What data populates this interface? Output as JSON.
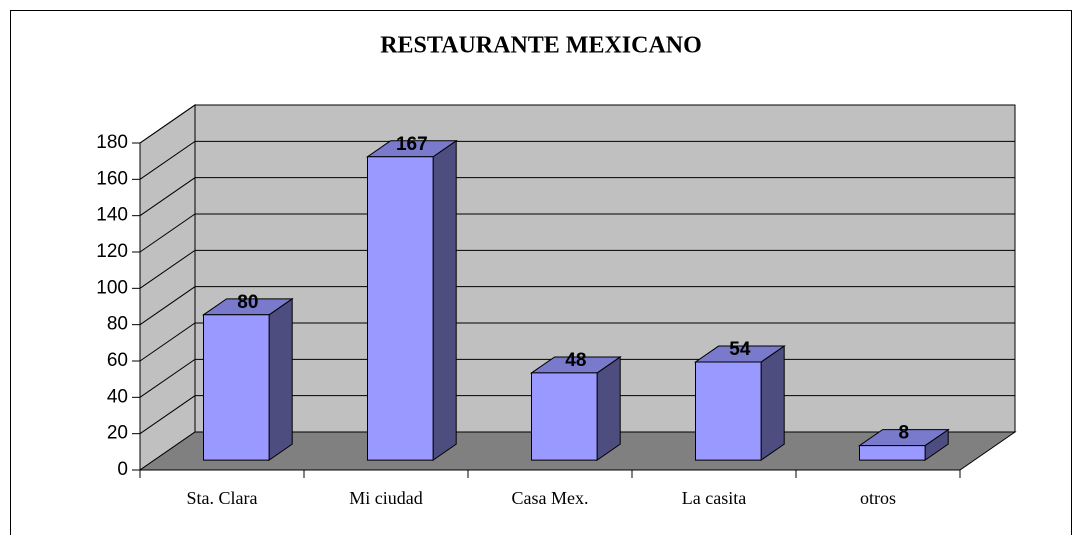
{
  "chart_data": {
    "type": "bar3d",
    "title": "RESTAURANTE MEXICANO",
    "categories": [
      "Sta. Clara",
      "Mi ciudad",
      "Casa Mex.",
      "La casita",
      "otros"
    ],
    "values": [
      80,
      167,
      48,
      54,
      8
    ],
    "color": "#9999ff",
    "ylim": [
      0,
      180
    ],
    "yticks": [
      0,
      20,
      40,
      60,
      80,
      100,
      120,
      140,
      160,
      180
    ],
    "grid": true
  }
}
